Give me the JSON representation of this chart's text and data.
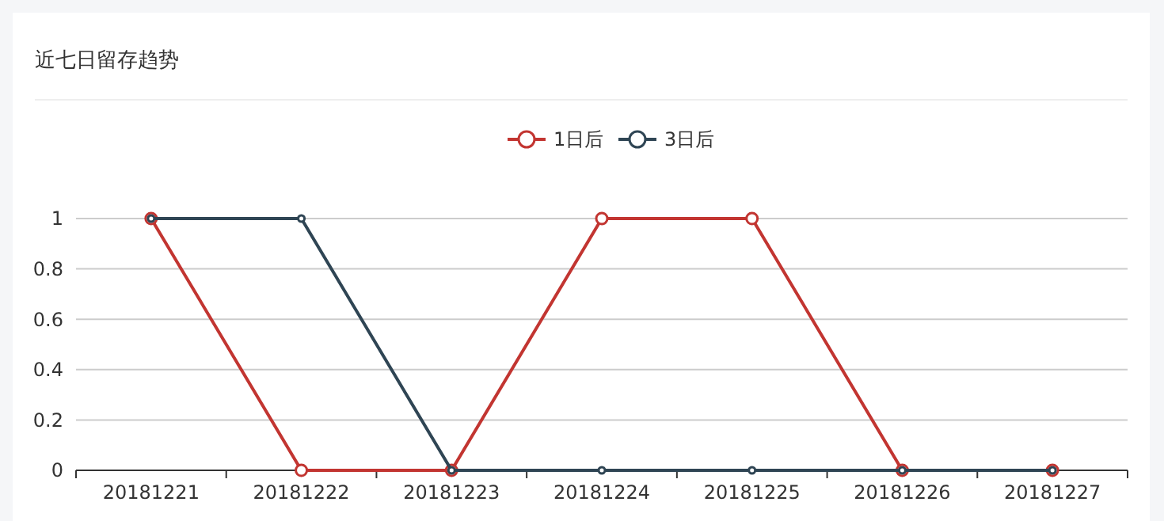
{
  "chart_data": {
    "type": "line",
    "title": "近七日留存趋势",
    "categories": [
      "20181221",
      "20181222",
      "20181223",
      "20181224",
      "20181225",
      "20181226",
      "20181227"
    ],
    "series": [
      {
        "name": "1日后",
        "color": "#c23531",
        "values": [
          1,
          0,
          0,
          1,
          1,
          0,
          0
        ]
      },
      {
        "name": "3日后",
        "color": "#2f4554",
        "values": [
          1,
          1,
          0,
          0,
          0,
          0,
          0
        ]
      }
    ],
    "ylim": [
      0,
      1
    ],
    "yticks": [
      0,
      0.2,
      0.4,
      0.6,
      0.8,
      1
    ],
    "grid": "y",
    "legend": "top",
    "marker": "circle",
    "line_style": "solid"
  }
}
